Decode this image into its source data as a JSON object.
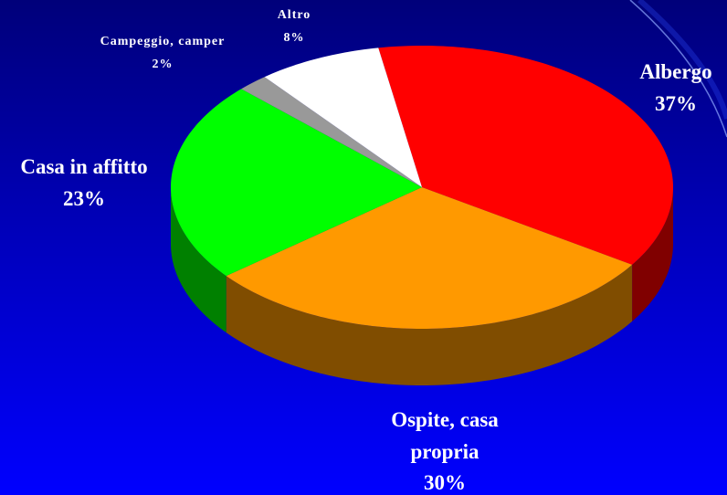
{
  "chart_data": {
    "type": "pie",
    "categories": [
      "Albergo",
      "Ospite, casa propria",
      "Casa in affitto",
      "Campeggio, camper",
      "Altro"
    ],
    "values": [
      37,
      30,
      23,
      2,
      8
    ],
    "value_labels": [
      "37%",
      "30%",
      "23%",
      "2%",
      "8%"
    ],
    "colors": [
      "#ff0000",
      "#ff9900",
      "#00ff00",
      "#999999",
      "#ffffff"
    ],
    "three_d": true
  }
}
